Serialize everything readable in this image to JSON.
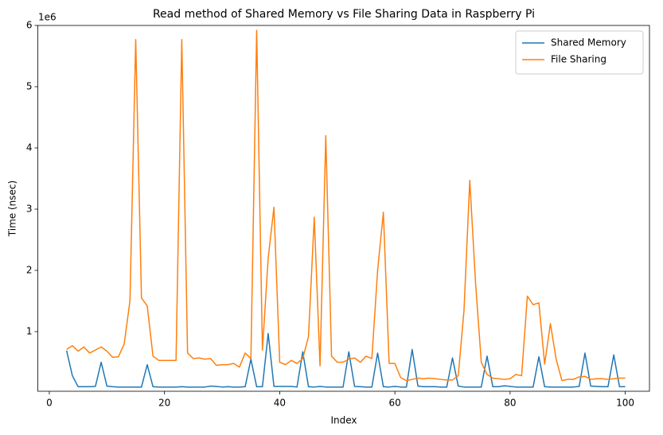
{
  "chart_data": {
    "type": "line",
    "title": "Read method of Shared Memory vs File Sharing Data in Raspberry Pi",
    "xlabel": "Index",
    "ylabel": "Time (nsec)",
    "y_offset_label": "1e6",
    "x": [
      3,
      4,
      5,
      6,
      7,
      8,
      9,
      10,
      11,
      12,
      13,
      14,
      15,
      16,
      17,
      18,
      19,
      20,
      21,
      22,
      23,
      24,
      25,
      26,
      27,
      28,
      29,
      30,
      31,
      32,
      33,
      34,
      35,
      36,
      37,
      38,
      39,
      40,
      41,
      42,
      43,
      44,
      45,
      46,
      47,
      48,
      49,
      50,
      51,
      52,
      53,
      54,
      55,
      56,
      57,
      58,
      59,
      60,
      61,
      62,
      63,
      64,
      65,
      66,
      67,
      68,
      69,
      70,
      71,
      72,
      73,
      74,
      75,
      76,
      77,
      78,
      79,
      80,
      81,
      82,
      83,
      84,
      85,
      86,
      87,
      88,
      89,
      90,
      91,
      92,
      93,
      94,
      95,
      96,
      97,
      98,
      99,
      100
    ],
    "series": [
      {
        "name": "Shared Memory",
        "color": "#1f77b4",
        "values": [
          690000,
          280000,
          100000,
          100000,
          100000,
          105000,
          500000,
          110000,
          100000,
          95000,
          95000,
          95000,
          95000,
          95000,
          460000,
          100000,
          95000,
          95000,
          95000,
          95000,
          100000,
          95000,
          95000,
          95000,
          95000,
          110000,
          105000,
          95000,
          100000,
          95000,
          95000,
          100000,
          550000,
          100000,
          100000,
          970000,
          105000,
          105000,
          105000,
          105000,
          95000,
          670000,
          100000,
          95000,
          105000,
          95000,
          95000,
          95000,
          95000,
          670000,
          105000,
          100000,
          95000,
          95000,
          650000,
          100000,
          95000,
          105000,
          95000,
          95000,
          710000,
          110000,
          100000,
          100000,
          100000,
          95000,
          95000,
          570000,
          110000,
          95000,
          95000,
          95000,
          95000,
          600000,
          100000,
          100000,
          115000,
          105000,
          95000,
          95000,
          95000,
          95000,
          590000,
          100000,
          95000,
          95000,
          95000,
          95000,
          95000,
          105000,
          650000,
          110000,
          105000,
          100000,
          100000,
          620000,
          100000,
          100000
        ]
      },
      {
        "name": "File Sharing",
        "color": "#ff7f0e",
        "values": [
          710000,
          770000,
          680000,
          750000,
          650000,
          700000,
          750000,
          680000,
          580000,
          590000,
          800000,
          1500000,
          5770000,
          1550000,
          1420000,
          600000,
          530000,
          530000,
          530000,
          530000,
          5770000,
          650000,
          560000,
          570000,
          550000,
          560000,
          450000,
          460000,
          460000,
          480000,
          420000,
          650000,
          560000,
          5920000,
          700000,
          2200000,
          3030000,
          500000,
          460000,
          530000,
          480000,
          560000,
          920000,
          2870000,
          440000,
          4200000,
          600000,
          500000,
          500000,
          550000,
          570000,
          500000,
          600000,
          560000,
          2000000,
          2950000,
          480000,
          480000,
          250000,
          200000,
          220000,
          240000,
          230000,
          240000,
          230000,
          220000,
          210000,
          210000,
          280000,
          1350000,
          3470000,
          1800000,
          500000,
          300000,
          240000,
          230000,
          220000,
          230000,
          300000,
          280000,
          1580000,
          1440000,
          1470000,
          470000,
          1130000,
          550000,
          200000,
          220000,
          220000,
          260000,
          270000,
          220000,
          230000,
          230000,
          220000,
          230000,
          240000,
          240000
        ]
      }
    ],
    "xlim": [
      -2,
      104.2
    ],
    "xticks": [
      0,
      20,
      40,
      60,
      80,
      100
    ],
    "ylim": [
      26000,
      6000000
    ],
    "yticks": [
      {
        "value": 1000000,
        "label": "1"
      },
      {
        "value": 2000000,
        "label": "2"
      },
      {
        "value": 3000000,
        "label": "3"
      },
      {
        "value": 4000000,
        "label": "4"
      },
      {
        "value": 5000000,
        "label": "5"
      },
      {
        "value": 6000000,
        "label": "6"
      }
    ],
    "legend": "upper right",
    "grid": false
  }
}
